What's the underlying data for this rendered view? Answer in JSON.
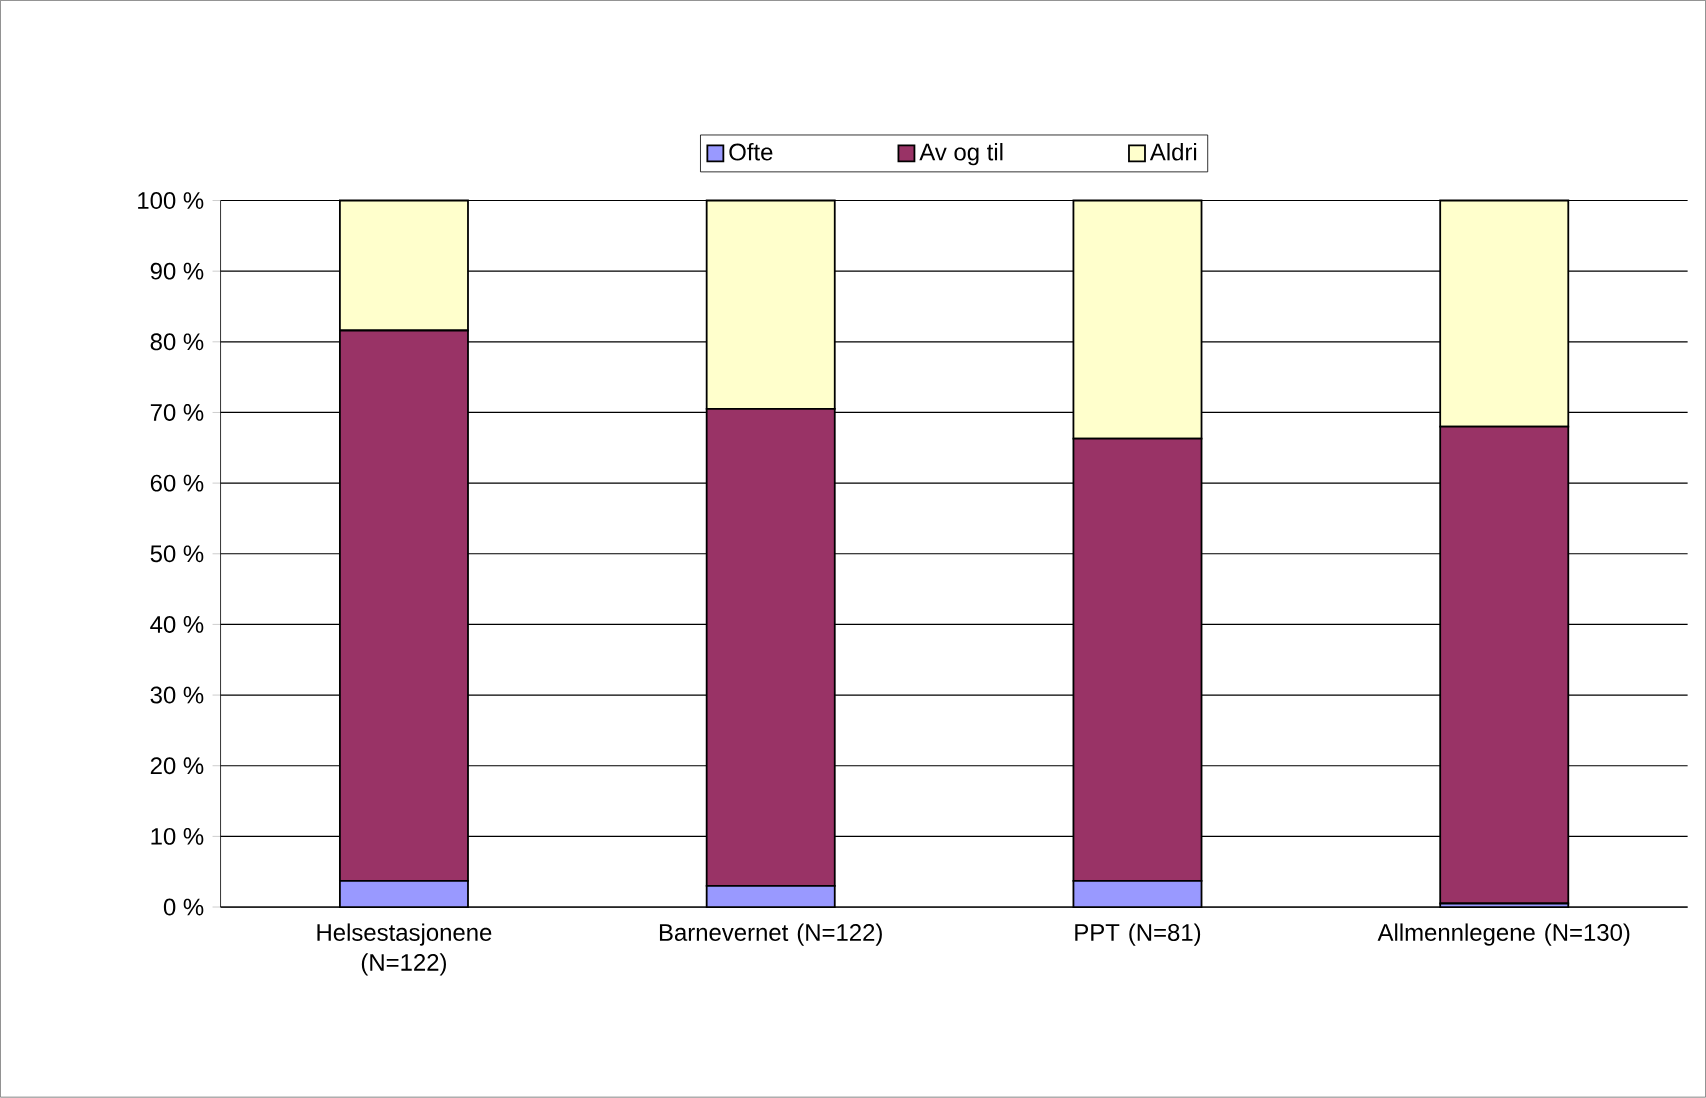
{
  "chart_data": {
    "type": "bar",
    "stacked": true,
    "categories": [
      "Helsestasjonene (N=122)",
      "Barnevernet (N=122)",
      "PPT (N=81)",
      "Allmennlegene (N=130)"
    ],
    "series": [
      {
        "name": "Ofte",
        "color": "#9999ff",
        "values": [
          3.7,
          3,
          3.7,
          0.5
        ]
      },
      {
        "name": "Av og til",
        "color": "#993366",
        "values": [
          77.9,
          67.5,
          62.6,
          67.5
        ]
      },
      {
        "name": "Aldri",
        "color": "#ffffcc",
        "values": [
          18.4,
          29.5,
          33.7,
          32
        ]
      }
    ],
    "ylim": [
      0,
      100
    ],
    "yticks": [
      {
        "value": 0,
        "label": "0 %"
      },
      {
        "value": 10,
        "label": "10 %"
      },
      {
        "value": 20,
        "label": "20 %"
      },
      {
        "value": 30,
        "label": "30 %"
      },
      {
        "value": 40,
        "label": "40 %"
      },
      {
        "value": 50,
        "label": "50 %"
      },
      {
        "value": 60,
        "label": "60 %"
      },
      {
        "value": 70,
        "label": "70 %"
      },
      {
        "value": 80,
        "label": "80 %"
      },
      {
        "value": 90,
        "label": "90 %"
      },
      {
        "value": 100,
        "label": "100 %"
      }
    ],
    "grid": "y",
    "legend": "top"
  }
}
